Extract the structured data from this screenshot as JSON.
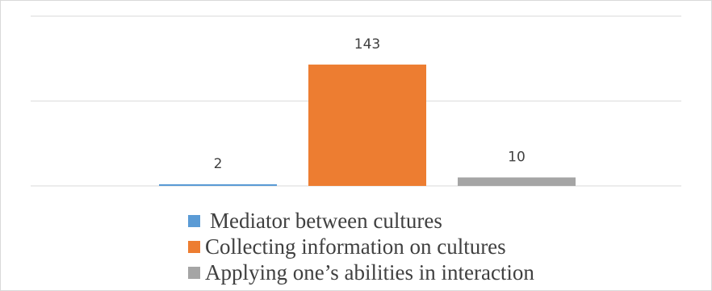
{
  "chart_data": {
    "type": "bar",
    "categories": [
      ""
    ],
    "series": [
      {
        "name": "Mediator between cultures",
        "values": [
          2
        ],
        "color": "#5b9bd5"
      },
      {
        "name": "Collecting information on cultures",
        "values": [
          143
        ],
        "color": "#ed7d31"
      },
      {
        "name": "Applying one’s abilities in interaction",
        "values": [
          10
        ],
        "color": "#a5a5a5"
      }
    ],
    "title": "",
    "xlabel": "",
    "ylabel": "",
    "ylim": [
      0,
      200
    ],
    "grid": true,
    "gridline_color": "#d9d9d9",
    "legend_position": "bottom"
  }
}
